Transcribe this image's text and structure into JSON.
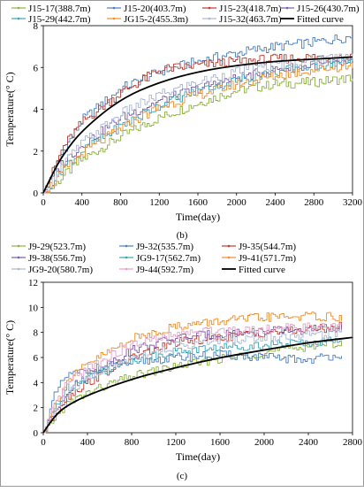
{
  "chart_data": [
    {
      "type": "line",
      "panel_label": "(b)",
      "xlabel": "Time(day)",
      "ylabel": "Temperature(° C)",
      "xlim": [
        0,
        3200
      ],
      "ylim": [
        0,
        8
      ],
      "xticks": [
        0,
        400,
        800,
        1200,
        1600,
        2000,
        2400,
        2800,
        3200
      ],
      "yticks": [
        0,
        2,
        4,
        6,
        8
      ],
      "grid": false,
      "legend_position": "top",
      "series": [
        {
          "name": "J15-17(388.7m)",
          "color": "#8cb43c",
          "x": [
            0,
            100,
            200,
            400,
            800,
            1200,
            1600,
            2000,
            2400,
            2800,
            3200
          ],
          "values": [
            0,
            0.3,
            0.8,
            1.6,
            2.7,
            3.6,
            4.3,
            4.9,
            5.2,
            5.3,
            5.5
          ]
        },
        {
          "name": "J15-20(403.7m)",
          "color": "#4a7fc1",
          "x": [
            0,
            100,
            200,
            400,
            800,
            1200,
            1600,
            2000,
            2400,
            2800,
            3200
          ],
          "values": [
            0,
            1.0,
            2.0,
            3.5,
            5.0,
            5.8,
            6.3,
            6.7,
            7.0,
            7.2,
            7.5
          ]
        },
        {
          "name": "J15-23(418.7m)",
          "color": "#c0392b",
          "x": [
            0,
            100,
            200,
            400,
            800,
            1200,
            1600,
            2000,
            2400,
            2800,
            3200
          ],
          "values": [
            0,
            1.1,
            2.2,
            3.4,
            4.8,
            5.9,
            6.1,
            6.3,
            6.4,
            6.5,
            6.5
          ]
        },
        {
          "name": "J15-26(430.7m)",
          "color": "#7d5aa6",
          "x": [
            0,
            100,
            200,
            400,
            800,
            1200,
            1600,
            2000,
            2400,
            2800,
            3200
          ],
          "values": [
            0,
            0.8,
            1.5,
            2.3,
            3.6,
            4.4,
            5.0,
            5.5,
            5.9,
            6.1,
            6.2
          ]
        },
        {
          "name": "J15-29(442.7m)",
          "color": "#3aa5b8",
          "x": [
            0,
            100,
            200,
            400,
            800,
            1200,
            1600,
            2000,
            2400,
            2800,
            3200
          ],
          "values": [
            0,
            0.6,
            1.2,
            2.0,
            3.2,
            4.2,
            4.9,
            5.4,
            5.8,
            6.1,
            6.3
          ]
        },
        {
          "name": "JG15-2(455.3m)",
          "color": "#f28c28",
          "x": [
            0,
            100,
            200,
            400,
            800,
            1200,
            1600,
            2000,
            2400,
            2800,
            3200
          ],
          "values": [
            0,
            0.5,
            1.0,
            1.9,
            3.1,
            4.1,
            4.7,
            5.2,
            5.6,
            5.9,
            6.1
          ]
        },
        {
          "name": "J15-32(463.7m)",
          "color": "#aab7d4",
          "x": [
            0,
            100,
            200,
            400,
            800,
            1200,
            1600,
            2000,
            2400,
            2800,
            3200
          ],
          "values": [
            0,
            0.7,
            1.4,
            2.4,
            3.8,
            4.7,
            5.3,
            5.8,
            6.1,
            6.4,
            6.6
          ]
        },
        {
          "name": "Fitted curve",
          "color": "#000000",
          "x": [
            0,
            100,
            200,
            400,
            800,
            1200,
            1600,
            2000,
            2400,
            2800,
            3200
          ],
          "values": [
            0,
            0.95,
            1.8,
            3.0,
            4.5,
            5.3,
            5.8,
            6.1,
            6.3,
            6.4,
            6.5
          ]
        }
      ]
    },
    {
      "type": "line",
      "panel_label": "(c)",
      "xlabel": "Time(day)",
      "ylabel": "Temperature(° C)",
      "xlim": [
        0,
        2800
      ],
      "ylim": [
        0,
        12
      ],
      "xticks": [
        0,
        400,
        800,
        1200,
        1600,
        2000,
        2400,
        2800
      ],
      "yticks": [
        0,
        2,
        4,
        6,
        8,
        10,
        12
      ],
      "grid": false,
      "legend_position": "top",
      "series": [
        {
          "name": "J9-29(523.7m)",
          "color": "#8cb43c",
          "x": [
            0,
            100,
            200,
            400,
            800,
            1200,
            1600,
            2000,
            2400,
            2700
          ],
          "values": [
            0,
            1.2,
            2.2,
            3.2,
            4.5,
            5.3,
            5.9,
            6.4,
            6.9,
            7.2
          ]
        },
        {
          "name": "J9-32(535.7m)",
          "color": "#4a7fc1",
          "x": [
            0,
            100,
            200,
            400,
            800,
            1200,
            1600,
            2000,
            2400,
            2700
          ],
          "values": [
            0,
            3.0,
            4.5,
            5.0,
            5.6,
            6.0,
            6.2,
            6.0,
            5.8,
            6.3
          ]
        },
        {
          "name": "J9-35(544.7m)",
          "color": "#c0392b",
          "x": [
            0,
            100,
            200,
            400,
            800,
            1200,
            1600,
            2000,
            2400,
            2700
          ],
          "values": [
            0,
            1.5,
            2.8,
            4.0,
            6.0,
            7.2,
            7.6,
            8.0,
            8.2,
            8.5
          ]
        },
        {
          "name": "J9-38(556.7m)",
          "color": "#7d5aa6",
          "x": [
            0,
            100,
            200,
            400,
            800,
            1200,
            1600,
            2000,
            2400,
            2700
          ],
          "values": [
            0,
            1.8,
            3.2,
            4.6,
            6.6,
            7.6,
            7.9,
            8.1,
            8.2,
            8.4
          ]
        },
        {
          "name": "JG9-17(562.7m)",
          "color": "#3aa5b8",
          "x": [
            0,
            100,
            200,
            400,
            800,
            1200,
            1600,
            2000,
            2400,
            2700
          ],
          "values": [
            0,
            2.0,
            3.5,
            4.5,
            5.8,
            6.5,
            6.8,
            7.0,
            7.2,
            7.4
          ]
        },
        {
          "name": "J9-41(571.7m)",
          "color": "#f28c28",
          "x": [
            0,
            100,
            200,
            400,
            800,
            1200,
            1600,
            2000,
            2400,
            2700
          ],
          "values": [
            0,
            2.2,
            4.0,
            5.5,
            7.5,
            8.5,
            8.9,
            9.2,
            9.3,
            9.2
          ]
        },
        {
          "name": "JG9-20(580.7m)",
          "color": "#aab7d4",
          "x": [
            0,
            100,
            200,
            400,
            800,
            1200,
            1600,
            2000,
            2400,
            2700
          ],
          "values": [
            0,
            1.6,
            3.0,
            4.4,
            6.0,
            6.9,
            7.3,
            7.6,
            7.8,
            8.0
          ]
        },
        {
          "name": "J9-44(592.7m)",
          "color": "#e6a0c8",
          "x": [
            0,
            100,
            200,
            400,
            800,
            1200,
            1600,
            2000,
            2400,
            2700
          ],
          "values": [
            0,
            2.1,
            3.8,
            5.2,
            7.0,
            7.8,
            8.2,
            8.3,
            8.4,
            8.4
          ]
        },
        {
          "name": "Fitted curve",
          "color": "#000000",
          "x": [
            0,
            100,
            200,
            400,
            800,
            1200,
            1600,
            2000,
            2400,
            2800
          ],
          "values": [
            0,
            1.3,
            2.1,
            3.0,
            4.3,
            5.2,
            6.0,
            6.6,
            7.2,
            7.6
          ]
        }
      ]
    }
  ]
}
